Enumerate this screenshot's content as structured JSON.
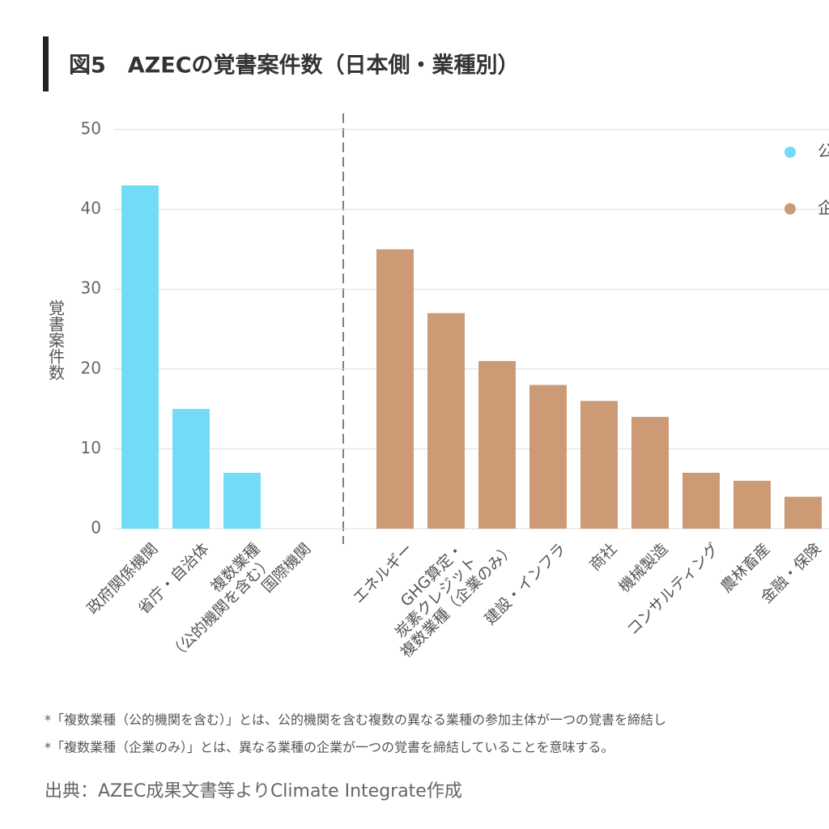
{
  "chart_data": {
    "type": "bar",
    "title": "図5　AZECの覚書案件数（日本側・業種別）",
    "y_label": "覚書案件数",
    "categories": [
      "政府関係機関",
      "省庁・自治体",
      "複数業種\n（公的機関を含む）",
      "国際機関",
      "エネルギー",
      "GHG算定・\n炭素クレジット",
      "複数業種（企業のみ）",
      "建設・インフラ",
      "商社",
      "機械製造",
      "コンサルティング",
      "農林畜産",
      "金融・保険"
    ],
    "series": [
      {
        "name": "公",
        "color": "#72dcf7",
        "values": [
          43,
          15,
          7,
          0,
          null,
          null,
          null,
          null,
          null,
          null,
          null,
          null,
          null
        ]
      },
      {
        "name": "企",
        "color": "#cc9a74",
        "values": [
          null,
          null,
          null,
          null,
          35,
          27,
          21,
          18,
          16,
          14,
          7,
          6,
          4
        ]
      }
    ],
    "ylim": [
      0,
      50
    ],
    "yticks": [
      0,
      10,
      20,
      30,
      40,
      50
    ],
    "grid": true,
    "notes": [
      "*「複数業種（公的機関を含む）」とは、公的機関を含む複数の異なる業種の参加主体が一つの覚書を締結し",
      "*「複数業種（企業のみ）」とは、異なる業種の企業が一つの覚書を締結していることを意味する。"
    ],
    "source": "出典：AZEC成果文書等よりClimate Integrate作成"
  }
}
